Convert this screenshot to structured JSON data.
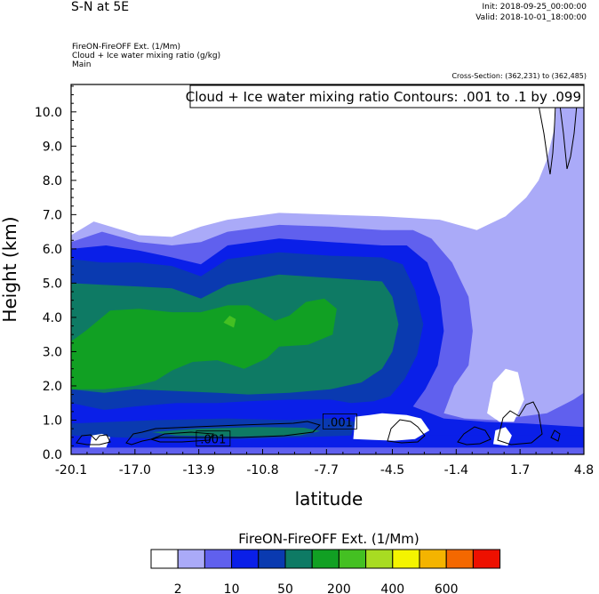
{
  "header": {
    "title": "S-N at 5E",
    "init": "Init: 2018-09-25_00:00:00",
    "valid": "Valid: 2018-10-01_18:00:00",
    "var_line1": "FireON-FireOFF Ext.   (1/Mm)",
    "var_line2": "Cloud + Ice water mixing ratio   (g/kg)",
    "var_line3": "Main",
    "cross_section": "Cross-Section: (362,231) to (362,485)"
  },
  "chart_data": {
    "type": "heatmap",
    "title": "S-N at 5E",
    "xlabel": "latitude",
    "ylabel": "Height (km)",
    "xlim": [
      -20.1,
      4.8
    ],
    "ylim": [
      0.0,
      10.8
    ],
    "x_ticks": [
      {
        "value": -20.1,
        "label": "-20.1"
      },
      {
        "value": -17.0,
        "label": "-17.0"
      },
      {
        "value": -13.9,
        "label": "-13.9"
      },
      {
        "value": -10.8,
        "label": "-10.8"
      },
      {
        "value": -7.7,
        "label": "-7.7"
      },
      {
        "value": -4.5,
        "label": "-4.5"
      },
      {
        "value": -1.4,
        "label": "-1.4"
      },
      {
        "value": 1.7,
        "label": "1.7"
      },
      {
        "value": 4.8,
        "label": "4.8"
      }
    ],
    "y_ticks": [
      {
        "value": 0.0,
        "label": "0.0"
      },
      {
        "value": 1.0,
        "label": "1.0"
      },
      {
        "value": 2.0,
        "label": "2.0"
      },
      {
        "value": 3.0,
        "label": "3.0"
      },
      {
        "value": 4.0,
        "label": "4.0"
      },
      {
        "value": 5.0,
        "label": "5.0"
      },
      {
        "value": 6.0,
        "label": "6.0"
      },
      {
        "value": 7.0,
        "label": "7.0"
      },
      {
        "value": 8.0,
        "label": "8.0"
      },
      {
        "value": 9.0,
        "label": "9.0"
      },
      {
        "value": 10.0,
        "label": "10.0"
      }
    ],
    "contour_annotation": "Cloud + Ice water mixing ratio Contours: .001 to .1 by .099",
    "contour_labels": [
      {
        "x": -13.2,
        "y": 0.45,
        "text": ".001"
      },
      {
        "x": -7.05,
        "y": 0.95,
        "text": ".001"
      }
    ],
    "colorbar": {
      "title": "FireON-FireOFF Ext.  (1/Mm)",
      "colors": [
        "#ffffff",
        "#aaaaf8",
        "#6060ee",
        "#0a1fe8",
        "#0a3ab0",
        "#0e7a64",
        "#11a023",
        "#44c022",
        "#a8dc22",
        "#f4f400",
        "#f4b400",
        "#f46800",
        "#ee1000"
      ],
      "tick_labels": [
        {
          "after_index": 0,
          "label": "2"
        },
        {
          "after_index": 2,
          "label": "10"
        },
        {
          "after_index": 4,
          "label": "50"
        },
        {
          "after_index": 6,
          "label": "200"
        },
        {
          "after_index": 8,
          "label": "400"
        },
        {
          "after_index": 10,
          "label": "600"
        }
      ]
    },
    "regions": [
      {
        "level": 1,
        "name": "light-blue region",
        "points": [
          [
            -20.1,
            0.55
          ],
          [
            -20.1,
            6.4
          ],
          [
            -19.0,
            6.8
          ],
          [
            -16.8,
            6.4
          ],
          [
            -15.2,
            6.35
          ],
          [
            -13.8,
            6.65
          ],
          [
            -12.5,
            6.85
          ],
          [
            -10.0,
            7.05
          ],
          [
            -7.5,
            7.0
          ],
          [
            -5.0,
            6.95
          ],
          [
            -3.5,
            6.9
          ],
          [
            -2.2,
            6.85
          ],
          [
            -0.4,
            6.55
          ],
          [
            1.0,
            6.95
          ],
          [
            2.0,
            7.5
          ],
          [
            2.6,
            8.0
          ],
          [
            3.0,
            8.6
          ],
          [
            3.4,
            9.6
          ],
          [
            3.5,
            10.8
          ],
          [
            4.8,
            10.8
          ],
          [
            4.8,
            0.0
          ],
          [
            -20.1,
            0.0
          ]
        ]
      },
      {
        "level": 2,
        "name": "medium-blue region",
        "points": [
          [
            -20.1,
            0.55
          ],
          [
            -20.1,
            6.2
          ],
          [
            -18.6,
            6.5
          ],
          [
            -16.8,
            6.2
          ],
          [
            -15.2,
            6.1
          ],
          [
            -13.8,
            6.2
          ],
          [
            -12.5,
            6.5
          ],
          [
            -10.0,
            6.7
          ],
          [
            -7.5,
            6.65
          ],
          [
            -5.0,
            6.55
          ],
          [
            -3.5,
            6.55
          ],
          [
            -2.6,
            6.3
          ],
          [
            -1.6,
            5.6
          ],
          [
            -0.8,
            4.6
          ],
          [
            -0.6,
            3.6
          ],
          [
            -0.8,
            2.6
          ],
          [
            -1.5,
            2.0
          ],
          [
            -2.0,
            1.2
          ],
          [
            -1.0,
            1.05
          ],
          [
            0.5,
            1.0
          ],
          [
            1.7,
            1.1
          ],
          [
            3.0,
            1.2
          ],
          [
            4.3,
            1.6
          ],
          [
            4.8,
            1.8
          ],
          [
            4.8,
            0.0
          ],
          [
            -20.1,
            0.0
          ]
        ]
      },
      {
        "level": 3,
        "name": "deep-blue region",
        "points": [
          [
            -20.1,
            0.55
          ],
          [
            -20.1,
            6.0
          ],
          [
            -18.4,
            6.1
          ],
          [
            -16.8,
            5.95
          ],
          [
            -15.2,
            5.75
          ],
          [
            -13.8,
            5.55
          ],
          [
            -12.5,
            6.1
          ],
          [
            -10.0,
            6.3
          ],
          [
            -7.5,
            6.2
          ],
          [
            -5.0,
            6.1
          ],
          [
            -3.8,
            6.1
          ],
          [
            -2.8,
            5.6
          ],
          [
            -2.2,
            4.6
          ],
          [
            -2.0,
            3.6
          ],
          [
            -2.3,
            2.6
          ],
          [
            -2.9,
            1.9
          ],
          [
            -3.5,
            1.4
          ],
          [
            -2.0,
            1.05
          ],
          [
            0.0,
            0.95
          ],
          [
            2.0,
            0.9
          ],
          [
            4.8,
            0.8
          ],
          [
            4.8,
            0.0
          ],
          [
            -20.1,
            0.0
          ]
        ]
      },
      {
        "level": 4,
        "name": "navy region",
        "points": [
          [
            -20.1,
            0.55
          ],
          [
            -20.1,
            5.7
          ],
          [
            -18.6,
            5.6
          ],
          [
            -16.8,
            5.6
          ],
          [
            -15.2,
            5.5
          ],
          [
            -13.8,
            5.2
          ],
          [
            -12.5,
            5.7
          ],
          [
            -10.0,
            5.9
          ],
          [
            -7.5,
            5.8
          ],
          [
            -5.0,
            5.75
          ],
          [
            -4.0,
            5.55
          ],
          [
            -3.4,
            4.8
          ],
          [
            -3.0,
            3.8
          ],
          [
            -3.3,
            2.9
          ],
          [
            -3.9,
            2.2
          ],
          [
            -4.6,
            1.7
          ],
          [
            -5.4,
            1.55
          ],
          [
            -6.5,
            1.5
          ],
          [
            -7.5,
            1.6
          ],
          [
            -9.5,
            1.6
          ],
          [
            -11.5,
            1.55
          ],
          [
            -13.0,
            1.5
          ],
          [
            -15.0,
            1.5
          ],
          [
            -17.0,
            1.4
          ],
          [
            -18.5,
            1.3
          ],
          [
            -20.1,
            1.5
          ]
        ]
      },
      {
        "level": 5,
        "name": "teal region",
        "points": [
          [
            -20.1,
            1.6
          ],
          [
            -20.1,
            5.0
          ],
          [
            -18.6,
            4.95
          ],
          [
            -16.8,
            4.9
          ],
          [
            -15.2,
            4.85
          ],
          [
            -13.8,
            4.55
          ],
          [
            -12.5,
            4.95
          ],
          [
            -10.0,
            5.25
          ],
          [
            -7.5,
            5.15
          ],
          [
            -5.0,
            5.05
          ],
          [
            -4.5,
            4.6
          ],
          [
            -4.2,
            3.8
          ],
          [
            -4.5,
            3.0
          ],
          [
            -5.0,
            2.5
          ],
          [
            -6.0,
            2.1
          ],
          [
            -7.5,
            1.9
          ],
          [
            -9.5,
            1.8
          ],
          [
            -11.5,
            1.75
          ],
          [
            -13.0,
            1.8
          ],
          [
            -15.0,
            1.85
          ],
          [
            -17.0,
            1.9
          ],
          [
            -18.5,
            1.8
          ],
          [
            -20.1,
            1.9
          ]
        ]
      },
      {
        "level": 6,
        "name": "green region",
        "points": [
          [
            -20.1,
            1.9
          ],
          [
            -20.1,
            3.3
          ],
          [
            -19.4,
            3.6
          ],
          [
            -18.2,
            4.2
          ],
          [
            -16.8,
            4.25
          ],
          [
            -15.2,
            4.15
          ],
          [
            -13.8,
            4.15
          ],
          [
            -12.5,
            4.35
          ],
          [
            -11.5,
            4.35
          ],
          [
            -10.2,
            3.9
          ],
          [
            -9.5,
            4.05
          ],
          [
            -8.7,
            4.45
          ],
          [
            -7.8,
            4.55
          ],
          [
            -7.2,
            4.25
          ],
          [
            -7.4,
            3.5
          ],
          [
            -8.6,
            3.2
          ],
          [
            -10.0,
            3.15
          ],
          [
            -10.6,
            2.8
          ],
          [
            -11.7,
            2.5
          ],
          [
            -13.0,
            2.75
          ],
          [
            -14.2,
            2.7
          ],
          [
            -15.2,
            2.45
          ],
          [
            -16.0,
            2.15
          ],
          [
            -17.0,
            2.0
          ],
          [
            -18.5,
            1.9
          ]
        ]
      },
      {
        "level": 7,
        "name": "light-green patch",
        "points": [
          [
            -12.7,
            3.85
          ],
          [
            -12.4,
            4.05
          ],
          [
            -12.1,
            3.95
          ],
          [
            -12.2,
            3.7
          ]
        ]
      },
      {
        "level": 2,
        "name": "medium-blue low patch",
        "points": [
          [
            -20.1,
            0.0
          ],
          [
            4.8,
            0.0
          ],
          [
            4.8,
            0.2
          ],
          [
            -20.1,
            0.2
          ]
        ]
      },
      {
        "level": 3,
        "name": "deep-blue low strip",
        "points": [
          [
            -20.1,
            0.2
          ],
          [
            -14.0,
            0.2
          ],
          [
            -8.0,
            0.25
          ],
          [
            -3.0,
            0.2
          ],
          [
            4.8,
            0.2
          ],
          [
            4.8,
            0.55
          ],
          [
            -20.1,
            0.55
          ]
        ]
      },
      {
        "level": 4,
        "name": "navy low band",
        "points": [
          [
            -20.1,
            0.9
          ],
          [
            -16.0,
            1.0
          ],
          [
            -12.5,
            1.05
          ],
          [
            -9.5,
            1.0
          ],
          [
            -7.5,
            1.05
          ],
          [
            -6.3,
            0.95
          ],
          [
            -6.5,
            0.55
          ],
          [
            -9.0,
            0.5
          ],
          [
            -12.0,
            0.45
          ],
          [
            -15.0,
            0.45
          ],
          [
            -18.0,
            0.5
          ],
          [
            -20.1,
            0.55
          ]
        ]
      },
      {
        "level": 5,
        "name": "teal low band",
        "points": [
          [
            -16.2,
            0.65
          ],
          [
            -14.0,
            0.75
          ],
          [
            -11.0,
            0.8
          ],
          [
            -8.8,
            0.78
          ],
          [
            -8.0,
            0.68
          ],
          [
            -9.0,
            0.55
          ],
          [
            -12.0,
            0.52
          ],
          [
            -15.0,
            0.55
          ]
        ]
      },
      {
        "level": 0,
        "name": "white cloud patch",
        "points": [
          [
            -6.4,
            0.45
          ],
          [
            -6.3,
            1.1
          ],
          [
            -5.6,
            1.15
          ],
          [
            -5.0,
            1.2
          ],
          [
            -3.8,
            1.15
          ],
          [
            -3.1,
            1.05
          ],
          [
            -2.7,
            0.7
          ],
          [
            -3.4,
            0.45
          ],
          [
            -4.4,
            0.4
          ],
          [
            -5.4,
            0.42
          ]
        ]
      },
      {
        "level": 0,
        "name": "white hole right",
        "points": [
          [
            0.1,
            1.2
          ],
          [
            0.4,
            2.1
          ],
          [
            1.0,
            2.5
          ],
          [
            1.6,
            2.4
          ],
          [
            1.9,
            1.6
          ],
          [
            1.4,
            0.95
          ],
          [
            0.7,
            0.95
          ]
        ]
      },
      {
        "level": 0,
        "name": "white hole lower-left",
        "points": [
          [
            -19.2,
            0.2
          ],
          [
            -19.1,
            0.55
          ],
          [
            -18.6,
            0.6
          ],
          [
            -18.2,
            0.5
          ],
          [
            -18.4,
            0.2
          ]
        ]
      },
      {
        "level": 0,
        "name": "white hole right-low",
        "points": [
          [
            0.4,
            0.3
          ],
          [
            0.5,
            0.7
          ],
          [
            1.0,
            0.8
          ],
          [
            1.3,
            0.55
          ],
          [
            1.1,
            0.25
          ]
        ]
      }
    ]
  }
}
